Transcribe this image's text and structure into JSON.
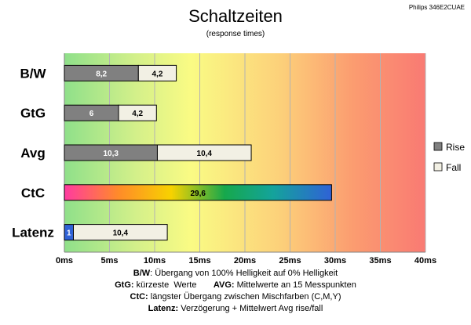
{
  "header": {
    "title": "Schaltzeiten",
    "subtitle": "(response times)",
    "model": "Philips 346E2CUAE"
  },
  "legend": {
    "rise": "Rise",
    "fall": "Fall"
  },
  "colors": {
    "rise": "#808080",
    "fall": "#f2f0e4",
    "latenz_rise": "#2f62d6"
  },
  "chart_data": {
    "type": "bar",
    "orientation": "horizontal",
    "stacked": true,
    "categories": [
      "B/W",
      "GtG",
      "Avg",
      "CtC",
      "Latenz"
    ],
    "series": [
      {
        "name": "Rise",
        "values": [
          8.2,
          6,
          10.3,
          29.6,
          1
        ]
      },
      {
        "name": "Fall",
        "values": [
          4.2,
          4.2,
          10.4,
          null,
          10.4
        ]
      }
    ],
    "value_labels": [
      [
        "8,2",
        "4,2"
      ],
      [
        "6",
        "4,2"
      ],
      [
        "10,3",
        "10,4"
      ],
      [
        "29,6"
      ],
      [
        "1",
        "10,4"
      ]
    ],
    "xlim": [
      0,
      40
    ],
    "xticks": [
      "0ms",
      "5ms",
      "10ms",
      "15ms",
      "20ms",
      "25ms",
      "30ms",
      "35ms",
      "40ms"
    ],
    "grid": true,
    "legend_position": "right",
    "background": "gradient green-yellow-red"
  },
  "footer": {
    "line1_key": "B/W",
    "line1_text": ":  Übergang von 100% Helligkeit auf 0% Helligkeit",
    "line2_key": "GtG:",
    "line2_text": " kürzeste  Werte       ",
    "line2_key2": "AVG:",
    "line2_text2": " Mittelwerte  an 15 Messpunkten",
    "line3_key": "CtC:",
    "line3_text": " längster Übergang  zwischen Mischfarben  (C,M,Y)",
    "line4_key": "Latenz:",
    "line4_text": " Verzögerung  + Mittelwert  Avg rise/fall"
  }
}
